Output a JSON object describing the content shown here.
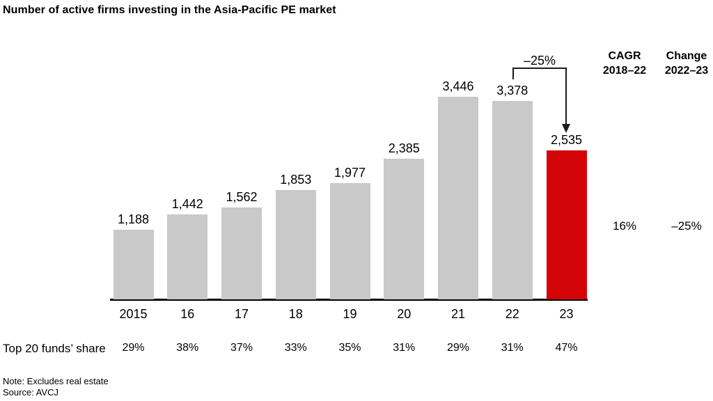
{
  "title": "Number of active firms investing in the Asia-Pacific PE market",
  "chart_data": {
    "type": "bar",
    "categories": [
      "2015",
      "16",
      "17",
      "18",
      "19",
      "20",
      "21",
      "22",
      "23"
    ],
    "values": [
      1188,
      1442,
      1562,
      1853,
      1977,
      2385,
      3446,
      3378,
      2535
    ],
    "value_labels": [
      "1,188",
      "1,442",
      "1,562",
      "1,853",
      "1,977",
      "2,385",
      "3,446",
      "3,378",
      "2,535"
    ],
    "title": "Number of active firms investing in the Asia-Pacific PE market",
    "xlabel": "",
    "ylabel": "",
    "ylim": [
      0,
      3650
    ],
    "grid": false,
    "legend_position": "none",
    "bar_color_default": "#c9c9c9",
    "bar_color_highlight": "#d30408",
    "highlight_index": 8,
    "annotation": {
      "label": "–25%",
      "from_category": "22",
      "to_category": "23"
    }
  },
  "share_row": {
    "label": "Top 20 funds’ share",
    "values": [
      "29%",
      "38%",
      "37%",
      "33%",
      "35%",
      "31%",
      "29%",
      "31%",
      "47%"
    ]
  },
  "stats": {
    "cagr": {
      "header_line1": "CAGR",
      "header_line2": "2018–22",
      "value": "16%"
    },
    "change": {
      "header_line1": "Change",
      "header_line2": "2022–23",
      "value": "–25%"
    }
  },
  "footnotes": {
    "note": "Note: Excludes real estate",
    "source": "Source: AVCJ"
  }
}
